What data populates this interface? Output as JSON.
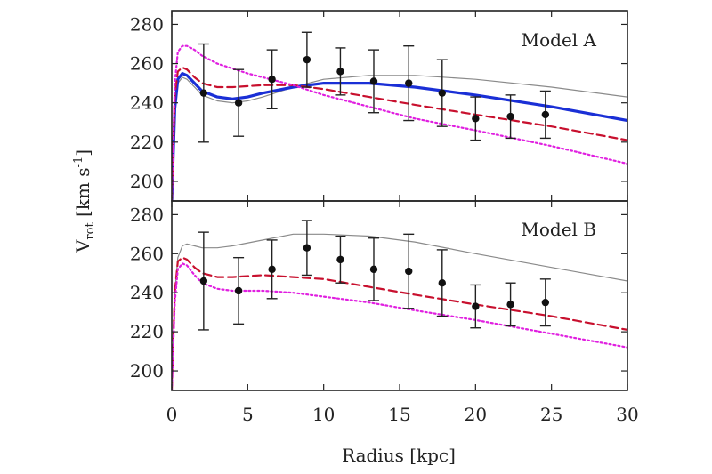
{
  "chart_data": {
    "type": "line",
    "xlabel": "Radius [kpc]",
    "ylabel": {
      "main": "V",
      "sub": "rot",
      "units_pre": " [km s",
      "units_sup": "-1",
      "units_post": "]"
    },
    "xlim": [
      0,
      30
    ],
    "x_ticks": [
      0,
      5,
      10,
      15,
      20,
      25,
      30
    ],
    "grid": false,
    "panels": [
      {
        "label": "Model A",
        "ylim": [
          190,
          287
        ],
        "y_ticks": [
          200,
          220,
          240,
          260,
          280
        ],
        "observed": {
          "x": [
            2.1,
            4.4,
            6.6,
            8.9,
            11.1,
            13.3,
            15.6,
            17.8,
            20.0,
            22.3,
            24.6
          ],
          "y": [
            245,
            240,
            252,
            262,
            256,
            251,
            250,
            245,
            232,
            233,
            234
          ],
          "err": [
            25,
            17,
            15,
            14,
            12,
            16,
            19,
            17,
            11,
            11,
            12
          ]
        },
        "curves": [
          {
            "style": "thin-gray",
            "color": "#8a8a8a",
            "x": [
              0,
              0.2,
              0.4,
              0.7,
              1,
              1.5,
              2,
              3,
              4,
              5,
              6,
              8,
              10,
              13,
              16,
              20,
              25,
              30
            ],
            "y": [
              190,
              235,
              250,
              253,
              252,
              248,
              244,
              241,
              240,
              241,
              243,
              248,
              252,
              254,
              254,
              252,
              248,
              243
            ]
          },
          {
            "style": "thick-blue",
            "color": "#1a2fd6",
            "x": [
              0,
              0.2,
              0.4,
              0.7,
              1,
              1.5,
              2,
              3,
              4,
              5,
              6,
              8,
              10,
              13,
              16,
              20,
              25,
              30
            ],
            "y": [
              190,
              237,
              252,
              255,
              254,
              250,
              246,
              243,
              242,
              243,
              245,
              248,
              250,
              250,
              248,
              244,
              238,
              231
            ]
          },
          {
            "style": "dashed-red",
            "color": "#c8102e",
            "x": [
              0,
              0.2,
              0.4,
              0.7,
              1,
              1.5,
              2,
              3,
              4,
              6,
              8,
              10,
              13,
              16,
              20,
              25,
              30
            ],
            "y": [
              190,
              244,
              256,
              258,
              257,
              253,
              250,
              248,
              248,
              249,
              249,
              247,
              243,
              239,
              234,
              228,
              221
            ]
          },
          {
            "style": "dotted-magenta",
            "color": "#e020e0",
            "x": [
              0,
              0.2,
              0.4,
              0.7,
              1,
              1.5,
              2,
              3,
              5,
              8,
              10,
              13,
              16,
              20,
              25,
              30
            ],
            "y": [
              190,
              250,
              266,
              269,
              269,
              267,
              264,
              260,
              255,
              249,
              244,
              238,
              232,
              226,
              218,
              209
            ]
          }
        ]
      },
      {
        "label": "Model B",
        "ylim": [
          190,
          287
        ],
        "y_ticks": [
          200,
          220,
          240,
          260,
          280
        ],
        "observed": {
          "x": [
            2.1,
            4.4,
            6.6,
            8.9,
            11.1,
            13.3,
            15.6,
            17.8,
            20.0,
            22.3,
            24.6
          ],
          "y": [
            246,
            241,
            252,
            263,
            257,
            252,
            251,
            245,
            233,
            234,
            235
          ],
          "err": [
            25,
            17,
            15,
            14,
            12,
            16,
            19,
            17,
            11,
            11,
            12
          ]
        },
        "curves": [
          {
            "style": "thin-gray",
            "color": "#8a8a8a",
            "x": [
              0,
              0.2,
              0.4,
              0.7,
              1,
              1.5,
              2,
              3,
              4,
              6,
              8,
              10,
              13,
              16,
              20,
              25,
              30
            ],
            "y": [
              190,
              240,
              258,
              264,
              265,
              264,
              263,
              263,
              264,
              267,
              270,
              270,
              269,
              266,
              260,
              253,
              246
            ]
          },
          {
            "style": "dashed-red",
            "color": "#c8102e",
            "x": [
              0,
              0.2,
              0.4,
              0.7,
              1,
              1.5,
              2,
              3,
              4,
              6,
              8,
              10,
              13,
              16,
              20,
              25,
              30
            ],
            "y": [
              190,
              240,
              256,
              258,
              257,
              253,
              250,
              248,
              248,
              249,
              248,
              247,
              243,
              239,
              234,
              228,
              221
            ]
          },
          {
            "style": "dotted-magenta",
            "color": "#e020e0",
            "x": [
              0,
              0.2,
              0.4,
              0.7,
              1,
              1.5,
              2,
              3,
              4,
              6,
              8,
              10,
              13,
              16,
              20,
              25,
              30
            ],
            "y": [
              190,
              235,
              252,
              255,
              254,
              249,
              245,
              242,
              241,
              241,
              240,
              238,
              235,
              231,
              226,
              219,
              212
            ]
          }
        ]
      }
    ]
  }
}
